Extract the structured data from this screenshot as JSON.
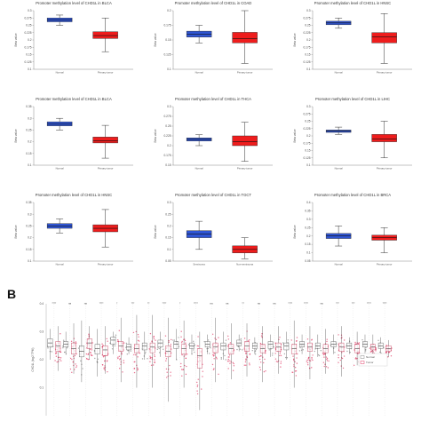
{
  "panel_b_label": "B",
  "colors": {
    "normal": "#2f55d4",
    "tumor": "#ee1d1d",
    "scatter_tumor": "#e2406a",
    "scatter_normal": "#8a8a8a"
  },
  "chart_data": [
    {
      "type": "box",
      "title": "Promoter methylation level of CHD1L in BLCA",
      "ylabel": "Beta value",
      "categories": [
        "Normal",
        "Primary tumor"
      ],
      "ylim": [
        0.1,
        0.3
      ],
      "boxes": [
        {
          "min": 0.25,
          "q1": 0.262,
          "median": 0.268,
          "q3": 0.275,
          "max": 0.285
        },
        {
          "min": 0.16,
          "q1": 0.205,
          "median": 0.215,
          "q3": 0.228,
          "max": 0.275
        }
      ]
    },
    {
      "type": "box",
      "title": "Promoter methylation level of CHD1L in COAD",
      "ylabel": "Beta value",
      "categories": [
        "Normal",
        "Primary tumor"
      ],
      "ylim": [
        0.1,
        0.2
      ],
      "boxes": [
        {
          "min": 0.145,
          "q1": 0.155,
          "median": 0.16,
          "q3": 0.165,
          "max": 0.175
        },
        {
          "min": 0.11,
          "q1": 0.145,
          "median": 0.152,
          "q3": 0.163,
          "max": 0.2
        }
      ]
    },
    {
      "type": "box",
      "title": "Promoter methylation level of CHD1L in HNSC",
      "ylabel": "Beta value",
      "categories": [
        "Normal",
        "Primary tumor"
      ],
      "ylim": [
        0.1,
        0.3
      ],
      "boxes": [
        {
          "min": 0.24,
          "q1": 0.252,
          "median": 0.258,
          "q3": 0.264,
          "max": 0.275
        },
        {
          "min": 0.12,
          "q1": 0.19,
          "median": 0.21,
          "q3": 0.225,
          "max": 0.29
        }
      ]
    },
    {
      "type": "box",
      "title": "Promoter methylation level of CHD1L in BLCA",
      "ylabel": "Beta value",
      "categories": [
        "Normal",
        "Primary tumor"
      ],
      "ylim": [
        0.1,
        0.35
      ],
      "boxes": [
        {
          "min": 0.25,
          "q1": 0.268,
          "median": 0.275,
          "q3": 0.285,
          "max": 0.3
        },
        {
          "min": 0.13,
          "q1": 0.195,
          "median": 0.205,
          "q3": 0.22,
          "max": 0.27
        }
      ]
    },
    {
      "type": "box",
      "title": "Promoter methylation level of CHD1L in THCA",
      "ylabel": "Beta value",
      "categories": [
        "Normal",
        "Primary tumor"
      ],
      "ylim": [
        0.15,
        0.3
      ],
      "boxes": [
        {
          "min": 0.2,
          "q1": 0.212,
          "median": 0.216,
          "q3": 0.22,
          "max": 0.228
        },
        {
          "min": 0.16,
          "q1": 0.2,
          "median": 0.21,
          "q3": 0.225,
          "max": 0.26
        }
      ]
    },
    {
      "type": "box",
      "title": "Promoter methylation level of CHD1L in LIHC",
      "ylabel": "Beta value",
      "categories": [
        "Normal",
        "Primary tumor"
      ],
      "ylim": [
        0.1,
        0.3
      ],
      "boxes": [
        {
          "min": 0.205,
          "q1": 0.212,
          "median": 0.216,
          "q3": 0.22,
          "max": 0.23
        },
        {
          "min": 0.125,
          "q1": 0.18,
          "median": 0.19,
          "q3": 0.205,
          "max": 0.25
        }
      ]
    },
    {
      "type": "box",
      "title": "Promoter methylation level of CHD1L in HNSC",
      "ylabel": "Beta value",
      "categories": [
        "Normal",
        "Primary tumor"
      ],
      "ylim": [
        0.1,
        0.35
      ],
      "boxes": [
        {
          "min": 0.22,
          "q1": 0.24,
          "median": 0.25,
          "q3": 0.26,
          "max": 0.28
        },
        {
          "min": 0.16,
          "q1": 0.225,
          "median": 0.24,
          "q3": 0.255,
          "max": 0.32
        }
      ]
    },
    {
      "type": "box",
      "title": "Promoter methylation level of CHD1L in TGCT",
      "ylabel": "Beta value",
      "categories": [
        "Seminoma",
        "Non-seminoma"
      ],
      "ylim": [
        0.05,
        0.3
      ],
      "boxes": [
        {
          "min": 0.1,
          "q1": 0.15,
          "median": 0.165,
          "q3": 0.18,
          "max": 0.22
        },
        {
          "min": 0.06,
          "q1": 0.085,
          "median": 0.1,
          "q3": 0.115,
          "max": 0.15
        }
      ]
    },
    {
      "type": "box",
      "title": "Promoter methylation level of CHD1L in BRCA",
      "ylabel": "Beta value",
      "categories": [
        "Normal",
        "Primary tumor"
      ],
      "ylim": [
        0.05,
        0.4
      ],
      "boxes": [
        {
          "min": 0.14,
          "q1": 0.185,
          "median": 0.2,
          "q3": 0.215,
          "max": 0.26
        },
        {
          "min": 0.1,
          "q1": 0.175,
          "median": 0.19,
          "q3": 0.205,
          "max": 0.25
        }
      ]
    },
    {
      "type": "box_scatter",
      "ylabel": "CHD1L (log2 TPM)",
      "ytick_labels": [
        "0.4",
        "0.3",
        "0.2",
        "0.1"
      ],
      "ylim": [
        0,
        0.4
      ],
      "legend": [
        "Normal",
        "Tumor"
      ],
      "legend_position": "bottom-right",
      "significance": [
        "****",
        "ns",
        "ns",
        "****",
        "*",
        "***",
        "**",
        "****",
        "*",
        "****",
        "ns",
        "ns",
        "**",
        "ns",
        "ns",
        "****",
        "****",
        "ns",
        "***",
        "***",
        "****",
        "****"
      ],
      "groups": [
        {
          "median": 0.26,
          "q1": 0.245,
          "q3": 0.275,
          "min": 0.2,
          "max": 0.31
        },
        {
          "median": 0.25,
          "q1": 0.23,
          "q3": 0.265,
          "min": 0.16,
          "max": 0.32
        },
        {
          "median": 0.255,
          "q1": 0.245,
          "q3": 0.265,
          "min": 0.22,
          "max": 0.3
        },
        {
          "median": 0.24,
          "q1": 0.22,
          "q3": 0.26,
          "min": 0.15,
          "max": 0.33
        },
        {
          "median": 0.23,
          "q1": 0.21,
          "q3": 0.25,
          "min": 0.12,
          "max": 0.34
        },
        {
          "median": 0.26,
          "q1": 0.24,
          "q3": 0.275,
          "min": 0.2,
          "max": 0.32
        },
        {
          "median": 0.24,
          "q1": 0.22,
          "q3": 0.255,
          "min": 0.14,
          "max": 0.31
        },
        {
          "median": 0.235,
          "q1": 0.215,
          "q3": 0.25,
          "min": 0.15,
          "max": 0.32
        },
        {
          "median": 0.27,
          "q1": 0.255,
          "q3": 0.28,
          "min": 0.22,
          "max": 0.3
        },
        {
          "median": 0.25,
          "q1": 0.23,
          "q3": 0.265,
          "min": 0.12,
          "max": 0.35
        },
        {
          "median": 0.245,
          "q1": 0.235,
          "q3": 0.255,
          "min": 0.22,
          "max": 0.28
        },
        {
          "median": 0.24,
          "q1": 0.225,
          "q3": 0.255,
          "min": 0.1,
          "max": 0.36
        },
        {
          "median": 0.25,
          "q1": 0.235,
          "q3": 0.26,
          "min": 0.2,
          "max": 0.3
        },
        {
          "median": 0.245,
          "q1": 0.225,
          "q3": 0.26,
          "min": 0.1,
          "max": 0.36
        },
        {
          "median": 0.26,
          "q1": 0.245,
          "q3": 0.27,
          "min": 0.21,
          "max": 0.3
        },
        {
          "median": 0.23,
          "q1": 0.21,
          "q3": 0.25,
          "min": 0.05,
          "max": 0.35
        },
        {
          "median": 0.255,
          "q1": 0.24,
          "q3": 0.265,
          "min": 0.2,
          "max": 0.31
        },
        {
          "median": 0.24,
          "q1": 0.22,
          "q3": 0.255,
          "min": 0.1,
          "max": 0.34
        },
        {
          "median": 0.25,
          "q1": 0.24,
          "q3": 0.26,
          "min": 0.22,
          "max": 0.29
        },
        {
          "median": 0.215,
          "q1": 0.17,
          "q3": 0.24,
          "min": 0.02,
          "max": 0.3
        },
        {
          "median": 0.255,
          "q1": 0.245,
          "q3": 0.265,
          "min": 0.22,
          "max": 0.29
        },
        {
          "median": 0.245,
          "q1": 0.225,
          "q3": 0.26,
          "min": 0.12,
          "max": 0.35
        },
        {
          "median": 0.25,
          "q1": 0.235,
          "q3": 0.26,
          "min": 0.2,
          "max": 0.3
        },
        {
          "median": 0.24,
          "q1": 0.22,
          "q3": 0.255,
          "min": 0.13,
          "max": 0.33
        },
        {
          "median": 0.26,
          "q1": 0.25,
          "q3": 0.27,
          "min": 0.23,
          "max": 0.29
        },
        {
          "median": 0.25,
          "q1": 0.23,
          "q3": 0.265,
          "min": 0.14,
          "max": 0.33
        },
        {
          "median": 0.25,
          "q1": 0.24,
          "q3": 0.26,
          "min": 0.22,
          "max": 0.28
        },
        {
          "median": 0.24,
          "q1": 0.225,
          "q3": 0.255,
          "min": 0.12,
          "max": 0.32
        },
        {
          "median": 0.255,
          "q1": 0.24,
          "q3": 0.265,
          "min": 0.21,
          "max": 0.29
        },
        {
          "median": 0.245,
          "q1": 0.23,
          "q3": 0.26,
          "min": 0.15,
          "max": 0.32
        },
        {
          "median": 0.25,
          "q1": 0.235,
          "q3": 0.26,
          "min": 0.2,
          "max": 0.3
        },
        {
          "median": 0.24,
          "q1": 0.22,
          "q3": 0.255,
          "min": 0.1,
          "max": 0.34
        },
        {
          "median": 0.255,
          "q1": 0.245,
          "q3": 0.265,
          "min": 0.22,
          "max": 0.29
        },
        {
          "median": 0.245,
          "q1": 0.23,
          "q3": 0.26,
          "min": 0.13,
          "max": 0.32
        },
        {
          "median": 0.25,
          "q1": 0.24,
          "q3": 0.26,
          "min": 0.21,
          "max": 0.29
        },
        {
          "median": 0.24,
          "q1": 0.225,
          "q3": 0.255,
          "min": 0.15,
          "max": 0.31
        },
        {
          "median": 0.255,
          "q1": 0.245,
          "q3": 0.265,
          "min": 0.22,
          "max": 0.29
        },
        {
          "median": 0.245,
          "q1": 0.23,
          "q3": 0.26,
          "min": 0.14,
          "max": 0.32
        },
        {
          "median": 0.25,
          "q1": 0.24,
          "q3": 0.26,
          "min": 0.22,
          "max": 0.28
        },
        {
          "median": 0.24,
          "q1": 0.225,
          "q3": 0.255,
          "min": 0.18,
          "max": 0.3
        },
        {
          "median": 0.255,
          "q1": 0.245,
          "q3": 0.265,
          "min": 0.22,
          "max": 0.29
        },
        {
          "median": 0.245,
          "q1": 0.235,
          "q3": 0.255,
          "min": 0.2,
          "max": 0.29
        },
        {
          "median": 0.25,
          "q1": 0.24,
          "q3": 0.26,
          "min": 0.22,
          "max": 0.28
        },
        {
          "median": 0.24,
          "q1": 0.23,
          "q3": 0.25,
          "min": 0.21,
          "max": 0.27
        }
      ]
    }
  ]
}
